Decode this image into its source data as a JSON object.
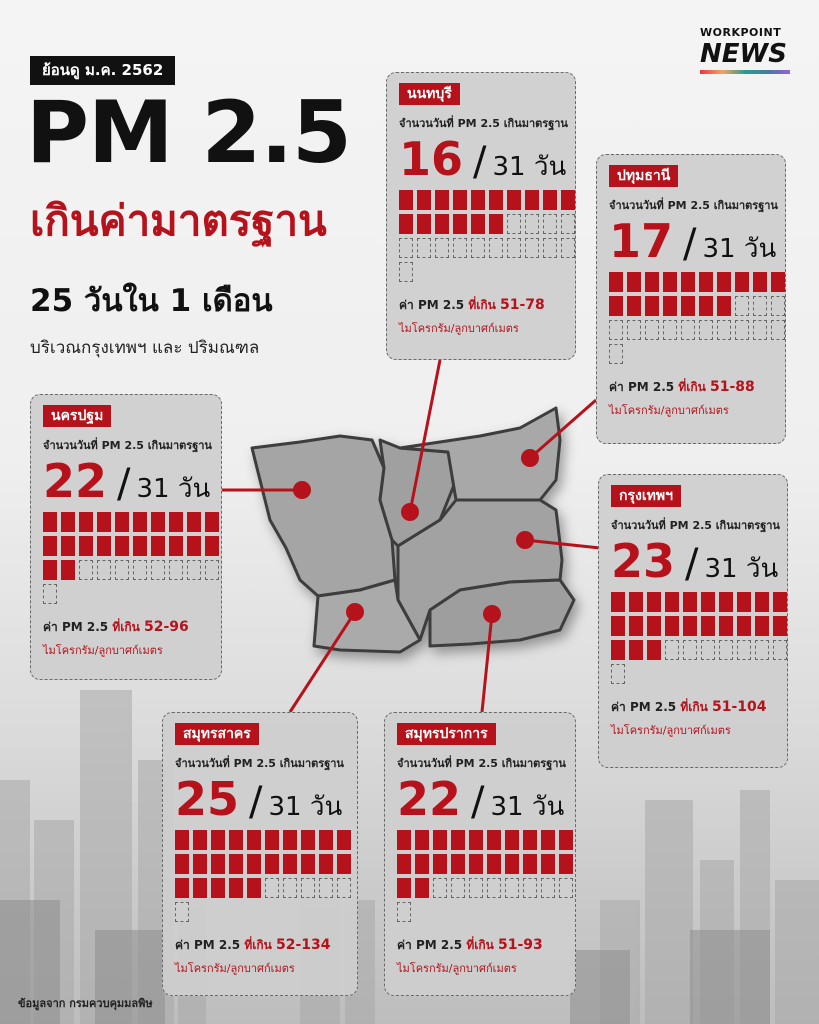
{
  "header": {
    "badge": "ย้อนดู ม.ค. 2562",
    "title": "PM 2.5",
    "subtitle": "เกินค่ามาตรฐาน",
    "days_line": "25 วันใน 1 เดือน",
    "area": "บริเวณกรุงเทพฯ และ ปริมณฑล"
  },
  "logo": {
    "top": "WORKPOINT",
    "main": "NEWS"
  },
  "source": "ข้อมูลจาก กรมควบคุมมลพิษ",
  "labels": {
    "desc": "จำนวนวันที่ PM 2.5 เกินมาตรฐาน",
    "slash": "/",
    "total": "31 วัน",
    "range_prefix": "ค่า PM 2.5",
    "range_exceed": "ที่เกิน",
    "unit": "ไมโครกรัม/ลูกบาศก์เมตร"
  },
  "colors": {
    "accent": "#b5121b",
    "map_fill": "#9a9a9a",
    "map_stroke": "#3d3d3d"
  },
  "provinces": [
    {
      "name": "นนทบุรี",
      "days": 16,
      "total_days": 31,
      "range": "51-78"
    },
    {
      "name": "ปทุมธานี",
      "days": 17,
      "total_days": 31,
      "range": "51-88"
    },
    {
      "name": "นครปฐม",
      "days": 22,
      "total_days": 31,
      "range": "52-96"
    },
    {
      "name": "กรุงเทพฯ",
      "days": 23,
      "total_days": 31,
      "range": "51-104"
    },
    {
      "name": "สมุทรสาคร",
      "days": 25,
      "total_days": 31,
      "range": "52-134"
    },
    {
      "name": "สมุทรปราการ",
      "days": 22,
      "total_days": 31,
      "range": "51-93"
    }
  ]
}
